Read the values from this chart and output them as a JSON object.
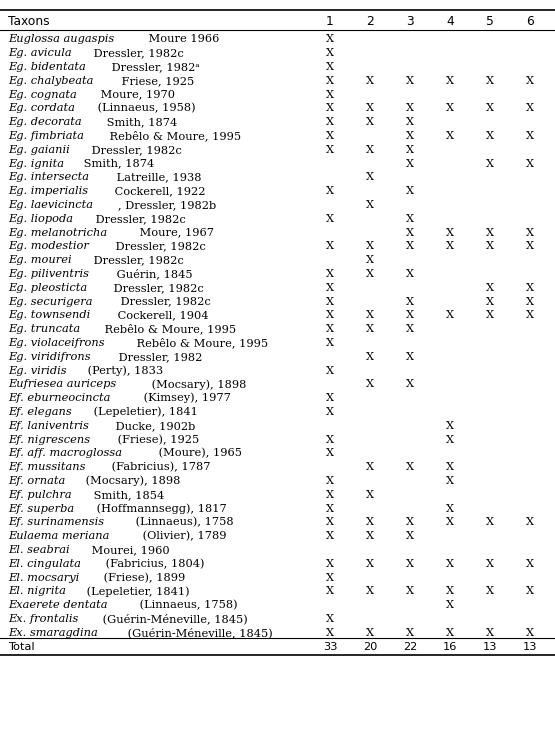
{
  "rows": [
    {
      "italic_part": "Euglossa augaspis",
      "rest": " Moure 1966",
      "marks": [
        1,
        0,
        0,
        0,
        0,
        0
      ]
    },
    {
      "italic_part": "Eg. avicula",
      "rest": " Dressler, 1982c",
      "marks": [
        1,
        0,
        0,
        0,
        0,
        0
      ]
    },
    {
      "italic_part": "Eg. bidentata",
      "rest": " Dressler, 1982ᵃ",
      "marks": [
        1,
        0,
        0,
        0,
        0,
        0
      ]
    },
    {
      "italic_part": "Eg. chalybeata",
      "rest": " Friese, 1925",
      "marks": [
        1,
        1,
        1,
        1,
        1,
        1
      ]
    },
    {
      "italic_part": "Eg. cognata",
      "rest": " Moure, 1970",
      "marks": [
        1,
        0,
        0,
        0,
        0,
        0
      ]
    },
    {
      "italic_part": "Eg. cordata",
      "rest": " (Linnaeus, 1958)",
      "marks": [
        1,
        1,
        1,
        1,
        1,
        1
      ]
    },
    {
      "italic_part": "Eg. decorata",
      "rest": " Smith, 1874",
      "marks": [
        1,
        1,
        1,
        0,
        0,
        0
      ]
    },
    {
      "italic_part": "Eg. fimbriata",
      "rest": " Rebêlo & Moure, 1995",
      "marks": [
        1,
        0,
        1,
        1,
        1,
        1
      ]
    },
    {
      "italic_part": "Eg. gaianii",
      "rest": " Dressler, 1982c",
      "marks": [
        1,
        1,
        1,
        0,
        0,
        0
      ]
    },
    {
      "italic_part": "Eg. ignita",
      "rest": " Smith, 1874",
      "marks": [
        0,
        0,
        1,
        0,
        1,
        1
      ]
    },
    {
      "italic_part": "Eg. intersecta",
      "rest": " Latreille, 1938",
      "marks": [
        0,
        1,
        0,
        0,
        0,
        0
      ]
    },
    {
      "italic_part": "Eg. imperialis",
      "rest": " Cockerell, 1922",
      "marks": [
        1,
        0,
        1,
        0,
        0,
        0
      ]
    },
    {
      "italic_part": "Eg. laevicincta",
      "rest": ", Dressler, 1982b",
      "marks": [
        0,
        1,
        0,
        0,
        0,
        0
      ]
    },
    {
      "italic_part": "Eg. liopoda",
      "rest": " Dressler, 1982c",
      "marks": [
        1,
        0,
        1,
        0,
        0,
        0
      ]
    },
    {
      "italic_part": "Eg. melanotricha",
      "rest": " Moure, 1967",
      "marks": [
        0,
        0,
        1,
        1,
        1,
        1
      ]
    },
    {
      "italic_part": "Eg. modestior",
      "rest": " Dressler, 1982c",
      "marks": [
        1,
        1,
        1,
        1,
        1,
        1
      ]
    },
    {
      "italic_part": "Eg. mourei",
      "rest": " Dressler, 1982c",
      "marks": [
        0,
        1,
        0,
        0,
        0,
        0
      ]
    },
    {
      "italic_part": "Eg. piliventris",
      "rest": " Guérin, 1845",
      "marks": [
        1,
        1,
        1,
        0,
        0,
        0
      ]
    },
    {
      "italic_part": "Eg. pleosticta",
      "rest": " Dressler, 1982c",
      "marks": [
        1,
        0,
        0,
        0,
        1,
        1
      ]
    },
    {
      "italic_part": "Eg. securigera",
      "rest": " Dressler, 1982c",
      "marks": [
        1,
        0,
        1,
        0,
        1,
        1
      ]
    },
    {
      "italic_part": "Eg. townsendi",
      "rest": " Cockerell, 1904",
      "marks": [
        1,
        1,
        1,
        1,
        1,
        1
      ]
    },
    {
      "italic_part": "Eg. truncata",
      "rest": " Rebêlo & Moure, 1995",
      "marks": [
        1,
        1,
        1,
        0,
        0,
        0
      ]
    },
    {
      "italic_part": "Eg. violaceifrons",
      "rest": " Rebêlo & Moure, 1995",
      "marks": [
        1,
        0,
        0,
        0,
        0,
        0
      ]
    },
    {
      "italic_part": "Eg. viridifrons",
      "rest": " Dressler, 1982",
      "marks": [
        0,
        1,
        1,
        0,
        0,
        0
      ]
    },
    {
      "italic_part": "Eg. viridis",
      "rest": " (Perty), 1833",
      "marks": [
        1,
        0,
        0,
        0,
        0,
        0
      ]
    },
    {
      "italic_part": "Eufriesea auriceps",
      "rest": " (Mocsary), 1898",
      "marks": [
        0,
        1,
        1,
        0,
        0,
        0
      ]
    },
    {
      "italic_part": "Ef. eburneocincta",
      "rest": " (Kimsey), 1977",
      "marks": [
        1,
        0,
        0,
        0,
        0,
        0
      ]
    },
    {
      "italic_part": "Ef. elegans",
      "rest": " (Lepeletier), 1841",
      "marks": [
        1,
        0,
        0,
        0,
        0,
        0
      ]
    },
    {
      "italic_part": "Ef. laniventris",
      "rest": " Ducke, 1902b",
      "marks": [
        0,
        0,
        0,
        1,
        0,
        0
      ]
    },
    {
      "italic_part": "Ef. nigrescens",
      "rest": " (Friese), 1925",
      "marks": [
        1,
        0,
        0,
        1,
        0,
        0
      ]
    },
    {
      "italic_part": "Ef. aff. macroglossa",
      "rest": " (Moure), 1965",
      "marks": [
        1,
        0,
        0,
        0,
        0,
        0
      ]
    },
    {
      "italic_part": "Ef. mussitans",
      "rest": " (Fabricius), 1787",
      "marks": [
        0,
        1,
        1,
        1,
        0,
        0
      ]
    },
    {
      "italic_part": "Ef. ornata",
      "rest": " (Mocsary), 1898",
      "marks": [
        1,
        0,
        0,
        1,
        0,
        0
      ]
    },
    {
      "italic_part": "Ef. pulchra",
      "rest": " Smith, 1854",
      "marks": [
        1,
        1,
        0,
        0,
        0,
        0
      ]
    },
    {
      "italic_part": "Ef. superba",
      "rest": " (Hoffmannsegg), 1817",
      "marks": [
        1,
        0,
        0,
        1,
        0,
        0
      ]
    },
    {
      "italic_part": "Ef. surinamensis",
      "rest": " (Linnaeus), 1758",
      "marks": [
        1,
        1,
        1,
        1,
        1,
        1
      ]
    },
    {
      "italic_part": "Eulaema meriana",
      "rest": " (Olivier), 1789",
      "marks": [
        1,
        1,
        1,
        0,
        0,
        0
      ]
    },
    {
      "italic_part": "El. seabrai",
      "rest": " Mourei, 1960",
      "marks": [
        0,
        0,
        0,
        0,
        0,
        0
      ]
    },
    {
      "italic_part": "El. cingulata",
      "rest": " (Fabricius, 1804)",
      "marks": [
        1,
        1,
        1,
        1,
        1,
        1
      ]
    },
    {
      "italic_part": "El. mocsaryi",
      "rest": " (Friese), 1899",
      "marks": [
        1,
        0,
        0,
        0,
        0,
        0
      ]
    },
    {
      "italic_part": "El. nigrita",
      "rest": " (Lepeletier, 1841)",
      "marks": [
        1,
        1,
        1,
        1,
        1,
        1
      ]
    },
    {
      "italic_part": "Exaerete dentata",
      "rest": " (Linnaeus, 1758)",
      "marks": [
        0,
        0,
        0,
        1,
        0,
        0
      ]
    },
    {
      "italic_part": "Ex. frontalis",
      "rest": " (Guérin-Méneville, 1845)",
      "marks": [
        1,
        0,
        0,
        0,
        0,
        0
      ]
    },
    {
      "italic_part": "Ex. smaragdina",
      "rest": " (Guérin-Méneville, 1845)",
      "marks": [
        1,
        1,
        1,
        1,
        1,
        1
      ]
    }
  ],
  "totals": [
    33,
    20,
    22,
    16,
    13,
    13
  ],
  "bg_color": "#ffffff",
  "text_color": "#000000",
  "font_size": 8.2,
  "header_font_size": 8.8
}
